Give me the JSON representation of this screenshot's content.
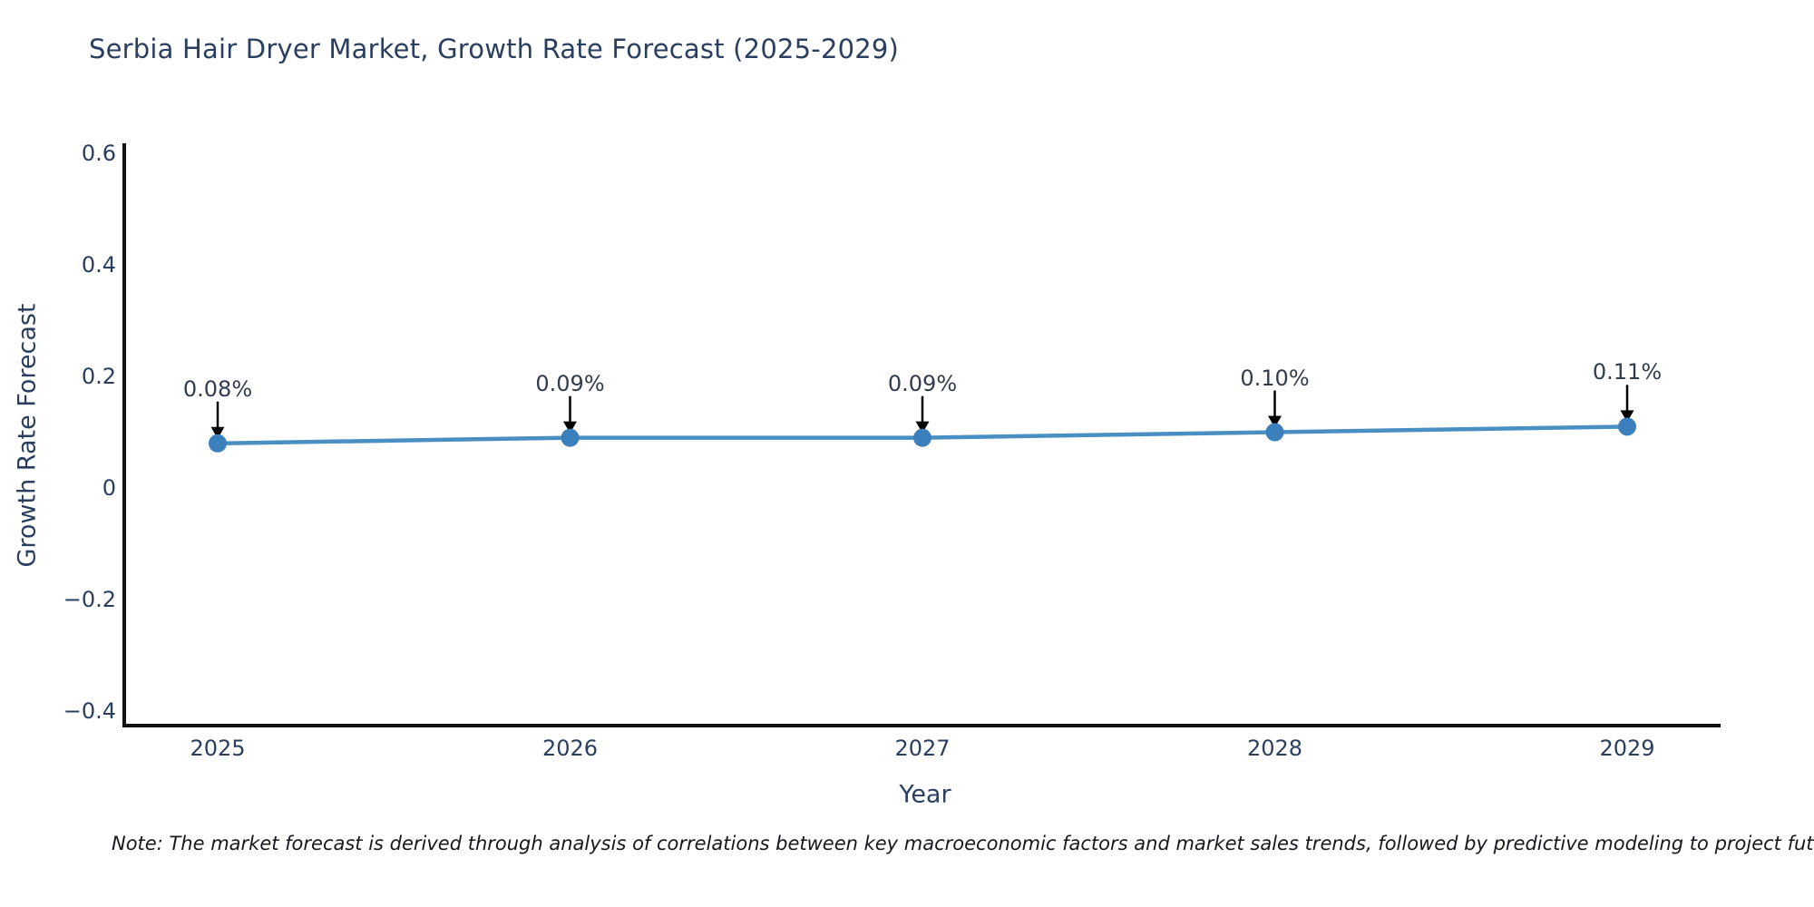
{
  "chart": {
    "title": "Serbia Hair Dryer Market, Growth Rate Forecast (2025-2029)",
    "footnote": "Note: The market forecast is derived through analysis of correlations between key macroeconomic factors and market sales trends, followed by predictive modeling to project future sa",
    "colors": {
      "line": "#4a8fc2",
      "marker": "#3b80bd",
      "axis_line": "#111111",
      "text": "#2a3f5f",
      "point_label_text": "#323c4d",
      "annotation_arrow": "#000000",
      "note_text": "#16181d",
      "background": "#ffffff"
    }
  },
  "chart_data": {
    "type": "line",
    "title": "Serbia Hair Dryer Market, Growth Rate Forecast (2025-2029)",
    "xlabel": "Year",
    "ylabel": "Growth Rate Forecast",
    "categories": [
      "2025",
      "2026",
      "2027",
      "2028",
      "2029"
    ],
    "series": [
      {
        "name": "Growth Rate Forecast",
        "values": [
          0.08,
          0.09,
          0.09,
          0.1,
          0.11
        ],
        "point_labels": [
          "0.08%",
          "0.09%",
          "0.09%",
          "0.10%",
          "0.11%"
        ]
      }
    ],
    "ylim": [
      -0.45,
      0.64
    ],
    "yticks": [
      {
        "value": 0.6,
        "label": "0.6"
      },
      {
        "value": 0.4,
        "label": "0.4"
      },
      {
        "value": 0.2,
        "label": "0.2"
      },
      {
        "value": 0,
        "label": "0"
      },
      {
        "value": -0.2,
        "label": "−0.2"
      },
      {
        "value": -0.4,
        "label": "−0.4"
      }
    ],
    "grid": false,
    "legend": "none",
    "annotations": "arrow-per-point"
  }
}
